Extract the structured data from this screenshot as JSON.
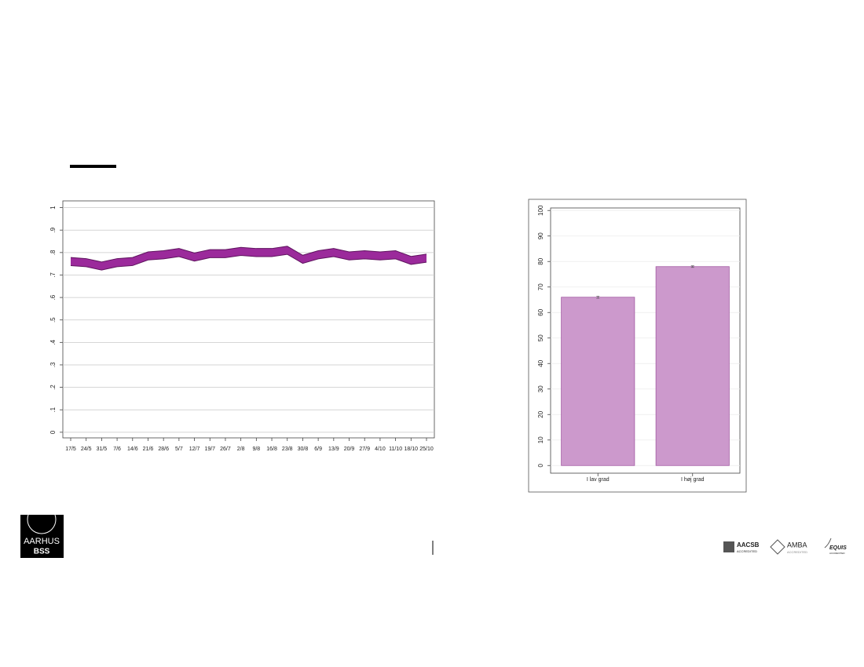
{
  "chart_data": [
    {
      "type": "band",
      "categories": [
        "17/5",
        "24/5",
        "31/5",
        "7/6",
        "14/6",
        "21/6",
        "28/6",
        "5/7",
        "12/7",
        "19/7",
        "26/7",
        "2/8",
        "9/8",
        "16/8",
        "23/8",
        "30/8",
        "6/9",
        "13/9",
        "20/9",
        "27/9",
        "4/10",
        "11/10",
        "18/10",
        "25/10"
      ],
      "upper": [
        0.778,
        0.773,
        0.758,
        0.773,
        0.778,
        0.803,
        0.808,
        0.818,
        0.798,
        0.813,
        0.813,
        0.823,
        0.818,
        0.818,
        0.828,
        0.788,
        0.808,
        0.818,
        0.803,
        0.808,
        0.803,
        0.808,
        0.783,
        0.793
      ],
      "lower": [
        0.742,
        0.737,
        0.722,
        0.737,
        0.742,
        0.767,
        0.772,
        0.782,
        0.762,
        0.777,
        0.777,
        0.787,
        0.782,
        0.782,
        0.792,
        0.752,
        0.772,
        0.782,
        0.767,
        0.772,
        0.767,
        0.772,
        0.747,
        0.757
      ],
      "color": "#9b2a9b",
      "edge_color": "#5e135e",
      "ylim": [
        -0.025,
        1.03
      ],
      "yticks": [
        0,
        {
          "value": 0.1,
          "label": ".1"
        },
        {
          "value": 0.2,
          "label": ".2"
        },
        {
          "value": 0.3,
          "label": ".3"
        },
        {
          "value": 0.4,
          "label": ".4"
        },
        {
          "value": 0.5,
          "label": ".5"
        },
        {
          "value": 0.6,
          "label": ".6"
        },
        {
          "value": 0.7,
          "label": ".7"
        },
        {
          "value": 0.8,
          "label": ".8"
        },
        {
          "value": 0.9,
          "label": ".9"
        },
        1
      ],
      "grid": true
    },
    {
      "type": "bar",
      "categories": [
        "I lav grad",
        "I høj grad"
      ],
      "values": [
        66,
        78
      ],
      "errors": [
        0.4,
        0.3
      ],
      "color": "#cc99cc",
      "edge_color": "#a35aa3",
      "ylim": [
        -3,
        101
      ],
      "yticks": [
        0,
        10,
        20,
        30,
        40,
        50,
        60,
        70,
        80,
        90,
        100
      ],
      "grid": true
    }
  ],
  "logo": {
    "name": "AARHUS",
    "unit": "BSS"
  },
  "accreditations": [
    {
      "name": "AACSB",
      "note": "ACCREDITED"
    },
    {
      "name": "AMBA",
      "note": "ACCREDITED"
    },
    {
      "name": "EQUIS",
      "note": "ACCREDITED"
    }
  ]
}
